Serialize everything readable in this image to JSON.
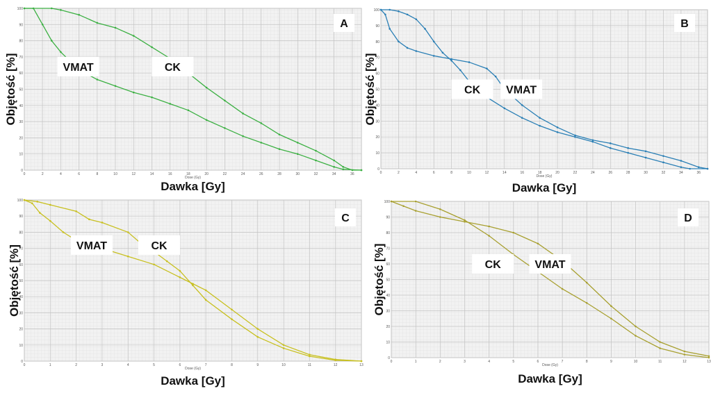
{
  "chart_data": [
    {
      "type": "line",
      "panel": "A",
      "xlabel": "Dawka  [Gy]",
      "ylabel": "Objętość  [%]",
      "axis_title": "Dose (Gy)",
      "xlim": [
        0,
        37
      ],
      "xticks": [
        0,
        2,
        4,
        6,
        8,
        10,
        12,
        14,
        16,
        18,
        20,
        22,
        24,
        26,
        28,
        30,
        32,
        34,
        36
      ],
      "ylim": [
        0,
        100
      ],
      "yticks": [
        0,
        10,
        20,
        30,
        40,
        50,
        60,
        70,
        80,
        90,
        100
      ],
      "grid": true,
      "series": [
        {
          "name": "VMAT",
          "color": "#3cb043",
          "x": [
            0,
            1,
            2,
            3,
            4,
            6,
            8,
            10,
            12,
            14,
            16,
            18,
            20,
            22,
            24,
            26,
            28,
            30,
            32,
            34,
            35,
            37
          ],
          "values": [
            100,
            100,
            90,
            80,
            73,
            62,
            56,
            52,
            48,
            45,
            41,
            37,
            31,
            26,
            21,
            17,
            13,
            10,
            6,
            2,
            0.5,
            0
          ]
        },
        {
          "name": "CK",
          "color": "#3cb043",
          "x": [
            0,
            3,
            4,
            6,
            8,
            10,
            12,
            14,
            16,
            18,
            20,
            22,
            24,
            26,
            28,
            30,
            32,
            34,
            35,
            36,
            37
          ],
          "values": [
            100,
            100,
            99,
            96,
            91,
            88,
            83,
            76,
            69,
            60,
            51,
            43,
            35,
            29,
            22,
            17,
            12,
            6,
            2,
            0,
            0
          ]
        }
      ]
    },
    {
      "type": "line",
      "panel": "B",
      "xlabel": "Dawka  [Gy]",
      "ylabel": "Objętość  [%]",
      "axis_title": "Dose (Gy)",
      "xlim": [
        0,
        37
      ],
      "xticks": [
        0,
        2,
        4,
        6,
        8,
        10,
        12,
        14,
        16,
        18,
        20,
        22,
        24,
        26,
        28,
        30,
        32,
        34,
        36
      ],
      "ylim": [
        0,
        100
      ],
      "yticks": [
        0,
        10,
        20,
        30,
        40,
        50,
        60,
        70,
        80,
        90,
        100
      ],
      "grid": true,
      "series": [
        {
          "name": "CK",
          "color": "#2a7fb5",
          "x": [
            0,
            1,
            2,
            3,
            4,
            5,
            6,
            7,
            8,
            9,
            10,
            12,
            14,
            16,
            18,
            20,
            22,
            24,
            26,
            28,
            30,
            32,
            34,
            35,
            37
          ],
          "values": [
            100,
            100,
            99,
            97,
            94,
            88,
            80,
            73,
            68,
            62,
            55,
            45,
            38,
            32,
            27,
            23,
            20,
            17,
            13,
            10,
            7,
            4,
            1,
            0,
            0
          ]
        },
        {
          "name": "VMAT",
          "color": "#2a7fb5",
          "x": [
            0,
            0.5,
            1,
            2,
            3,
            4,
            6,
            8,
            10,
            12,
            13,
            14,
            16,
            18,
            20,
            22,
            24,
            26,
            28,
            30,
            32,
            34,
            36,
            37
          ],
          "values": [
            100,
            97,
            88,
            80,
            76,
            74,
            71,
            69,
            67,
            63,
            58,
            50,
            40,
            32,
            26,
            21,
            18,
            16,
            13,
            11,
            8,
            5,
            1,
            0
          ]
        }
      ]
    },
    {
      "type": "line",
      "panel": "C",
      "xlabel": "Dawka  [Gy]",
      "ylabel": "Objętość  [%]",
      "axis_title": "Dose (Gy)",
      "xlim": [
        0,
        13
      ],
      "xticks": [
        0,
        1,
        2,
        3,
        4,
        5,
        6,
        7,
        8,
        9,
        10,
        11,
        12,
        13
      ],
      "ylim": [
        0,
        100
      ],
      "yticks": [
        0,
        10,
        20,
        30,
        40,
        50,
        60,
        70,
        80,
        90,
        100
      ],
      "grid": true,
      "series": [
        {
          "name": "VMAT",
          "color": "#c8c020",
          "x": [
            0,
            0.3,
            0.6,
            1,
            1.5,
            2,
            3,
            4,
            5,
            6,
            6.5,
            7,
            8,
            9,
            10,
            11,
            12,
            13
          ],
          "values": [
            100,
            98,
            92,
            87,
            80,
            75,
            70,
            65,
            60,
            52,
            48,
            44,
            32,
            20,
            10,
            4,
            1,
            0
          ]
        },
        {
          "name": "CK",
          "color": "#c8c020",
          "x": [
            0,
            0.5,
            1,
            2,
            2.5,
            3,
            4,
            4.5,
            5,
            5.5,
            6,
            6.5,
            7,
            8,
            9,
            10,
            11,
            12,
            13
          ],
          "values": [
            100,
            99,
            97,
            93,
            88,
            86,
            80,
            73,
            68,
            62,
            56,
            47,
            38,
            26,
            15,
            8,
            3,
            0.5,
            0
          ]
        }
      ]
    },
    {
      "type": "line",
      "panel": "D",
      "xlabel": "Dawka  [Gy]",
      "ylabel": "Objętość  [%]",
      "axis_title": "Dose (Gy)",
      "xlim": [
        0,
        13
      ],
      "xticks": [
        0,
        1,
        2,
        3,
        4,
        5,
        6,
        7,
        8,
        9,
        10,
        11,
        12,
        13
      ],
      "ylim": [
        0,
        100
      ],
      "yticks": [
        0,
        10,
        20,
        30,
        40,
        50,
        60,
        70,
        80,
        90,
        100
      ],
      "grid": true,
      "series": [
        {
          "name": "CK",
          "color": "#a8a030",
          "x": [
            0,
            1,
            2,
            3,
            4,
            5,
            6,
            7,
            8,
            9,
            10,
            11,
            12,
            13
          ],
          "values": [
            100,
            100,
            95,
            88,
            78,
            66,
            55,
            44,
            35,
            25,
            14,
            6,
            2,
            0
          ]
        },
        {
          "name": "VMAT",
          "color": "#a8a030",
          "x": [
            0,
            0.5,
            1,
            2,
            3,
            4,
            5,
            6,
            7,
            8,
            9,
            10,
            11,
            12,
            13
          ],
          "values": [
            100,
            97,
            94,
            90,
            87,
            84,
            80,
            73,
            62,
            48,
            33,
            20,
            10,
            4,
            1
          ]
        }
      ]
    }
  ]
}
